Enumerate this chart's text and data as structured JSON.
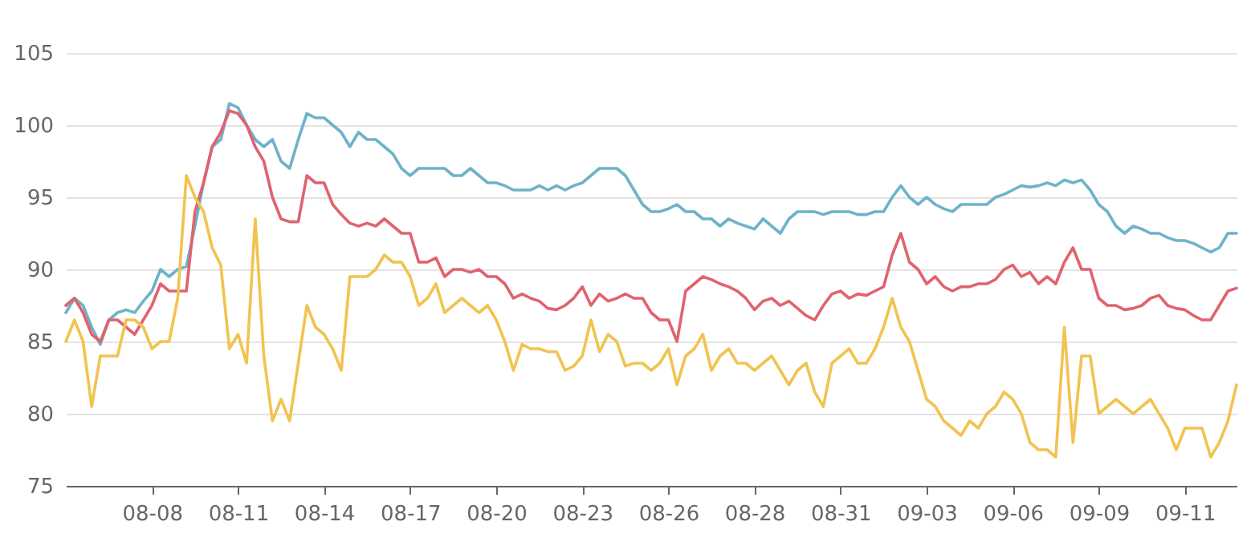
{
  "chart_data": {
    "type": "line",
    "categories": [
      null,
      null,
      null,
      null,
      null,
      null,
      null,
      null,
      null,
      null,
      "08-08",
      null,
      null,
      null,
      null,
      null,
      null,
      null,
      null,
      null,
      "08-11",
      null,
      null,
      null,
      null,
      null,
      null,
      null,
      null,
      null,
      "08-14",
      null,
      null,
      null,
      null,
      null,
      null,
      null,
      null,
      null,
      "08-17",
      null,
      null,
      null,
      null,
      null,
      null,
      null,
      null,
      null,
      "08-20",
      null,
      null,
      null,
      null,
      null,
      null,
      null,
      null,
      null,
      "08-23",
      null,
      null,
      null,
      null,
      null,
      null,
      null,
      null,
      null,
      "08-26",
      null,
      null,
      null,
      null,
      null,
      null,
      null,
      null,
      null,
      "08-28",
      null,
      null,
      null,
      null,
      null,
      null,
      null,
      null,
      null,
      "08-31",
      null,
      null,
      null,
      null,
      null,
      null,
      null,
      null,
      null,
      "09-03",
      null,
      null,
      null,
      null,
      null,
      null,
      null,
      null,
      null,
      "09-06",
      null,
      null,
      null,
      null,
      null,
      null,
      null,
      null,
      null,
      "09-09",
      null,
      null,
      null,
      null,
      null,
      null,
      null,
      null,
      null,
      "09-11",
      null,
      null,
      null,
      null,
      null,
      null
    ],
    "series": [
      {
        "color": "#6db3c9",
        "values": [
          87,
          88,
          87.5,
          86,
          84.8,
          86.5,
          87,
          87.2,
          87,
          87.8,
          88.5,
          90,
          89.5,
          90,
          90.2,
          93,
          96,
          98.5,
          99,
          101.5,
          101.2,
          100,
          99,
          98.5,
          99,
          97.5,
          97,
          99,
          100.8,
          100.5,
          100.5,
          100,
          99.5,
          98.5,
          99.5,
          99,
          99,
          98.5,
          98,
          97,
          96.5,
          97,
          97,
          97,
          97,
          96.5,
          96.5,
          97,
          96.5,
          96,
          96,
          95.8,
          95.5,
          95.5,
          95.5,
          95.8,
          95.5,
          95.8,
          95.5,
          95.8,
          96,
          96.5,
          97,
          97,
          97,
          96.5,
          95.5,
          94.5,
          94,
          94,
          94.2,
          94.5,
          94,
          94,
          93.5,
          93.5,
          93,
          93.5,
          93.2,
          93,
          92.8,
          93.5,
          93,
          92.5,
          93.5,
          94,
          94,
          94,
          93.8,
          94,
          94,
          94,
          93.8,
          93.8,
          94,
          94,
          95,
          95.8,
          95,
          94.5,
          95,
          94.5,
          94.2,
          94,
          94.5,
          94.5,
          94.5,
          94.5,
          95,
          95.2,
          95.5,
          95.8,
          95.7,
          95.8,
          96,
          95.8,
          96.2,
          96,
          96.2,
          95.5,
          94.5,
          94,
          93,
          92.5,
          93,
          92.8,
          92.5,
          92.5,
          92.2,
          92,
          92,
          91.8,
          91.5,
          91.2,
          91.5,
          92.5,
          92.5
        ]
      },
      {
        "color": "#e0636e",
        "values": [
          87.5,
          88,
          87,
          85.5,
          85,
          86.5,
          86.5,
          86,
          85.5,
          86.5,
          87.5,
          89,
          88.5,
          88.5,
          88.5,
          94,
          96,
          98.5,
          99.5,
          101,
          100.8,
          100,
          98.5,
          97.5,
          95,
          93.5,
          93.3,
          93.3,
          96.5,
          96,
          96,
          94.5,
          93.8,
          93.2,
          93,
          93.2,
          93,
          93.5,
          93,
          92.5,
          92.5,
          90.5,
          90.5,
          90.8,
          89.5,
          90,
          90,
          89.8,
          90,
          89.5,
          89.5,
          89,
          88,
          88.3,
          88,
          87.8,
          87.3,
          87.2,
          87.5,
          88,
          88.8,
          87.5,
          88.3,
          87.8,
          88,
          88.3,
          88,
          88,
          87,
          86.5,
          86.5,
          85,
          88.5,
          89,
          89.5,
          89.3,
          89,
          88.8,
          88.5,
          88,
          87.2,
          87.8,
          88,
          87.5,
          87.8,
          87.3,
          86.8,
          86.5,
          87.5,
          88.3,
          88.5,
          88,
          88.3,
          88.2,
          88.5,
          88.8,
          91,
          92.5,
          90.5,
          90,
          89,
          89.5,
          88.8,
          88.5,
          88.8,
          88.8,
          89,
          89,
          89.3,
          90,
          90.3,
          89.5,
          89.8,
          89,
          89.5,
          89,
          90.5,
          91.5,
          90,
          90,
          88,
          87.5,
          87.5,
          87.2,
          87.3,
          87.5,
          88,
          88.2,
          87.5,
          87.3,
          87.2,
          86.8,
          86.5,
          86.5,
          87.5,
          88.5,
          88.7
        ]
      },
      {
        "color": "#f1c350",
        "values": [
          85,
          86.5,
          85,
          80.5,
          84,
          84,
          84,
          86.5,
          86.5,
          86,
          84.5,
          85,
          85,
          88,
          96.5,
          95,
          94,
          91.5,
          90.3,
          84.5,
          85.5,
          83.5,
          93.5,
          84,
          79.5,
          81,
          79.5,
          83.5,
          87.5,
          86,
          85.5,
          84.5,
          83,
          89.5,
          89.5,
          89.5,
          90,
          91,
          90.5,
          90.5,
          89.5,
          87.5,
          88,
          89,
          87,
          87.5,
          88,
          87.5,
          87,
          87.5,
          86.5,
          85,
          83,
          84.8,
          84.5,
          84.5,
          84.3,
          84.3,
          83,
          83.3,
          84,
          86.5,
          84.3,
          85.5,
          85,
          83.3,
          83.5,
          83.5,
          83,
          83.5,
          84.5,
          82,
          84,
          84.5,
          85.5,
          83,
          84,
          84.5,
          83.5,
          83.5,
          83,
          83.5,
          84,
          83,
          82,
          83,
          83.5,
          81.5,
          80.5,
          83.5,
          84,
          84.5,
          83.5,
          83.5,
          84.5,
          86,
          88,
          86,
          85,
          83,
          81,
          80.5,
          79.5,
          79,
          78.5,
          79.5,
          79,
          80,
          80.5,
          81.5,
          81,
          80,
          78,
          77.5,
          77.5,
          77,
          86,
          78,
          84,
          84,
          80,
          80.5,
          81,
          80.5,
          80,
          80.5,
          81,
          80,
          79,
          77.5,
          79,
          79,
          79,
          77,
          78,
          79.5,
          82
        ]
      }
    ],
    "ylim": [
      75,
      105
    ],
    "yticks": [
      75,
      80,
      85,
      90,
      95,
      100,
      105
    ],
    "grid": "y",
    "marker": "none",
    "line_style": "solid"
  }
}
